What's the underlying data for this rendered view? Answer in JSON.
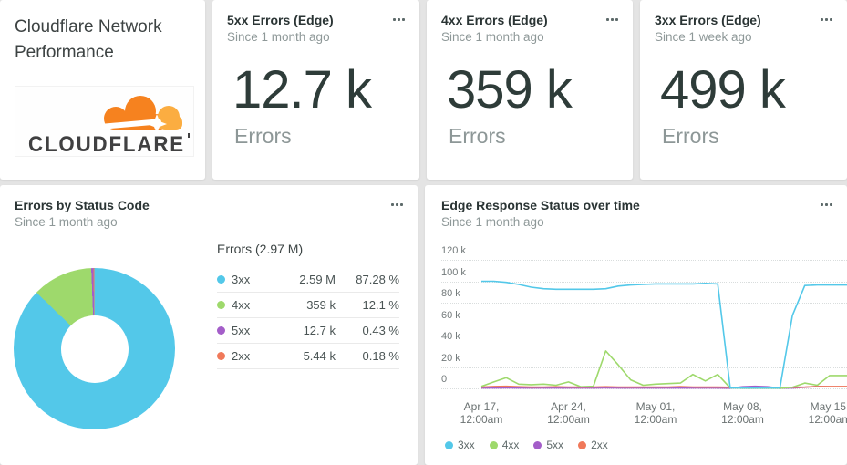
{
  "title_card": {
    "title": "Cloudflare Network Performance",
    "logo_text": "CLOUDFLARE"
  },
  "stat_cards": [
    {
      "title": "5xx Errors (Edge)",
      "subtitle": "Since 1 month ago",
      "value": "12.7 k",
      "label": "Errors"
    },
    {
      "title": "4xx Errors (Edge)",
      "subtitle": "Since 1 month ago",
      "value": "359 k",
      "label": "Errors"
    },
    {
      "title": "3xx Errors (Edge)",
      "subtitle": "Since 1 week ago",
      "value": "499 k",
      "label": "Errors"
    }
  ],
  "donut_card": {
    "title": "Errors by Status Code",
    "subtitle": "Since 1 month ago",
    "table_title": "Errors (2.97 M)"
  },
  "line_card": {
    "title": "Edge Response Status over time",
    "subtitle": "Since 1 month ago"
  },
  "colors": {
    "3xx": "#53c8e9",
    "4xx": "#9ed96c",
    "5xx": "#a45ec9",
    "2xx": "#f0795a",
    "logo_orange": "#f6821f",
    "logo_light_orange": "#fbad41",
    "logo_text": "#404041"
  },
  "chart_data": [
    {
      "type": "pie",
      "title": "Errors by Status Code",
      "subtitle": "Since 1 month ago",
      "total_label": "Errors (2.97 M)",
      "legend_position": "right-table",
      "slices": [
        {
          "label": "3xx",
          "value": 2590000,
          "value_text": "2.59 M",
          "percent": 87.28,
          "percent_text": "87.28 %",
          "color": "#53c8e9"
        },
        {
          "label": "4xx",
          "value": 359000,
          "value_text": "359 k",
          "percent": 12.1,
          "percent_text": "12.1 %",
          "color": "#9ed96c"
        },
        {
          "label": "5xx",
          "value": 12700,
          "value_text": "12.7 k",
          "percent": 0.43,
          "percent_text": "0.43 %",
          "color": "#a45ec9"
        },
        {
          "label": "2xx",
          "value": 5440,
          "value_text": "5.44 k",
          "percent": 0.18,
          "percent_text": "0.18 %",
          "color": "#f0795a"
        }
      ]
    },
    {
      "type": "line",
      "title": "Edge Response Status over time",
      "subtitle": "Since 1 month ago",
      "xlabel": "",
      "ylabel": "",
      "ylim": [
        0,
        120000
      ],
      "yticks": [
        120000,
        100000,
        80000,
        60000,
        40000,
        20000,
        0
      ],
      "ytick_labels": [
        "120 k",
        "100 k",
        "80 k",
        "60 k",
        "40 k",
        "20 k",
        "0"
      ],
      "grid": "horizontal-dotted",
      "legend_position": "bottom",
      "x_start": "Apr 17, 12:00am",
      "x_interval": "1 day",
      "xtick_indices": [
        0,
        7,
        14,
        21,
        28
      ],
      "xtick_labels": [
        [
          "Apr 17,",
          "12:00am"
        ],
        [
          "Apr 24,",
          "12:00am"
        ],
        [
          "May 01,",
          "12:00am"
        ],
        [
          "May 08,",
          "12:00am"
        ],
        [
          "May 15,",
          "12:00am"
        ]
      ],
      "series": [
        {
          "name": "3xx",
          "color": "#53c8e9",
          "values": [
            100000,
            100000,
            99000,
            97000,
            94500,
            93000,
            92500,
            92500,
            92500,
            92500,
            93000,
            95500,
            96500,
            97000,
            97500,
            97500,
            97500,
            97500,
            98000,
            97500,
            500,
            300,
            300,
            300,
            300,
            68000,
            96000,
            96500,
            96500
          ]
        },
        {
          "name": "4xx",
          "color": "#9ed96c",
          "values": [
            2000,
            6000,
            10000,
            4000,
            3500,
            4000,
            3000,
            6000,
            1500,
            2000,
            35000,
            22000,
            8000,
            3000,
            4000,
            4500,
            5000,
            13000,
            7000,
            13000,
            500,
            200,
            200,
            200,
            200,
            1000,
            5000,
            3000,
            12000
          ]
        },
        {
          "name": "5xx",
          "color": "#a45ec9",
          "values": [
            300,
            300,
            400,
            300,
            300,
            300,
            300,
            300,
            300,
            300,
            400,
            300,
            300,
            300,
            300,
            300,
            300,
            300,
            300,
            300,
            200,
            1500,
            2000,
            1500,
            200,
            300,
            1000,
            2000,
            1500
          ]
        },
        {
          "name": "2xx",
          "color": "#f0795a",
          "values": [
            1200,
            1800,
            2000,
            1500,
            1200,
            1300,
            1500,
            1300,
            1200,
            1300,
            1500,
            1300,
            1200,
            1300,
            1300,
            1300,
            1600,
            1300,
            1200,
            1300,
            1000,
            800,
            800,
            800,
            800,
            1000,
            1200,
            1800,
            1800
          ]
        }
      ]
    }
  ]
}
